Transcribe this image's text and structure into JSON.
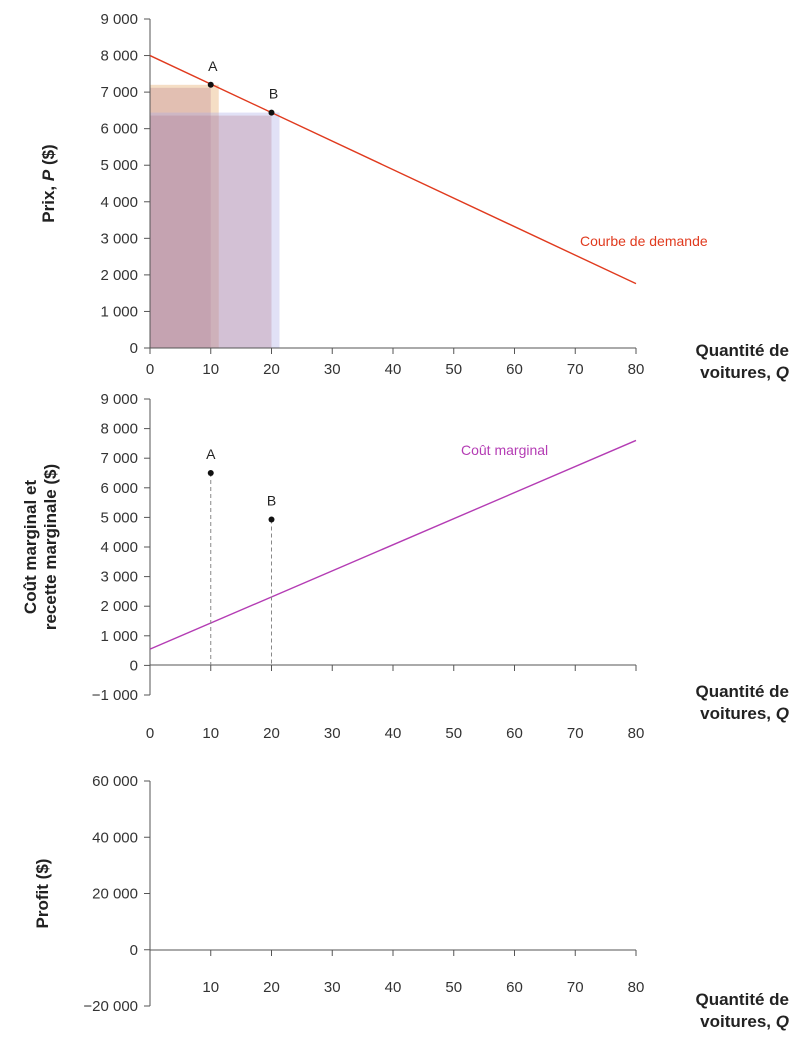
{
  "chart_data": [
    {
      "type": "line",
      "ylabel_parts": [
        "Prix, ",
        "P",
        " ($)"
      ],
      "xlabel_lines": [
        [
          "Quantité de"
        ],
        [
          "voitures, ",
          "Q"
        ]
      ],
      "xlim": [
        0,
        80
      ],
      "ylim": [
        0,
        9000
      ],
      "xticks": [
        "0",
        "10",
        "20",
        "30",
        "40",
        "50",
        "60",
        "70",
        "80"
      ],
      "yticks": [
        "0",
        "1 000",
        "2 000",
        "3 000",
        "4 000",
        "5 000",
        "6 000",
        "7 000",
        "8 000",
        "9 000"
      ],
      "series": [
        {
          "name": "Courbe de demande",
          "x": [
            0,
            80
          ],
          "y": [
            8000,
            1760
          ],
          "color": "#e03a1e"
        }
      ],
      "points": [
        {
          "label": "A",
          "x": 10,
          "y": 7200
        },
        {
          "label": "B",
          "x": 20,
          "y": 6440
        }
      ],
      "rectangles": [
        {
          "x0": 0,
          "x1": 10,
          "y0": 0,
          "y1": 7200
        },
        {
          "x0": 0,
          "x1": 20,
          "y0": 0,
          "y1": 6440
        }
      ]
    },
    {
      "type": "line",
      "ylabel_lines": [
        "Coût marginal et",
        "recette marginale ($)"
      ],
      "xlabel_lines": [
        [
          "Quantité de"
        ],
        [
          "voitures, ",
          "Q"
        ]
      ],
      "xlim": [
        0,
        80
      ],
      "ylim": [
        -1000,
        9000
      ],
      "xticks": [
        "0",
        "10",
        "20",
        "30",
        "40",
        "50",
        "60",
        "70",
        "80"
      ],
      "yticks": [
        "−1 000",
        "0",
        "1 000",
        "2 000",
        "3 000",
        "4 000",
        "5 000",
        "6 000",
        "7 000",
        "8 000",
        "9 000"
      ],
      "series": [
        {
          "name": "Coût marginal",
          "x": [
            0,
            80
          ],
          "y": [
            550,
            7600
          ],
          "color": "#b43cb4"
        }
      ],
      "points": [
        {
          "label": "A",
          "x": 10,
          "y": 6500
        },
        {
          "label": "B",
          "x": 20,
          "y": 4930
        }
      ]
    },
    {
      "type": "line",
      "ylabel": "Profit ($)",
      "xlabel_lines": [
        [
          "Quantité de"
        ],
        [
          "voitures, ",
          "Q"
        ]
      ],
      "xlim": [
        0,
        80
      ],
      "ylim": [
        -20000,
        60000
      ],
      "xticks": [
        "10",
        "20",
        "30",
        "40",
        "50",
        "60",
        "70",
        "80"
      ],
      "yticks": [
        "−20 000",
        "0",
        "20 000",
        "40 000",
        "60 000"
      ],
      "series": []
    }
  ]
}
